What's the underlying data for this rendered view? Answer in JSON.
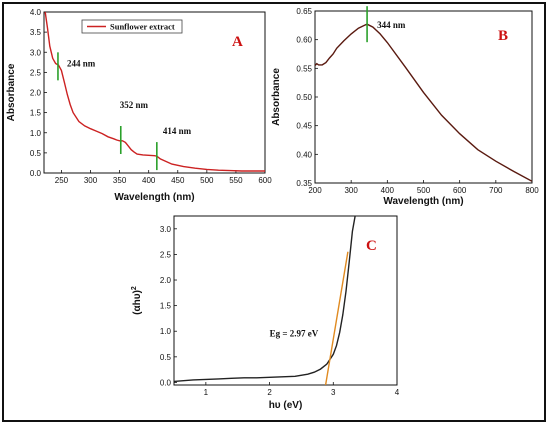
{
  "chart_data": [
    {
      "id": "A",
      "type": "line",
      "panel_label": "A",
      "xlabel": "Wavelength (nm)",
      "ylabel": "Absorbance",
      "xlim": [
        220,
        600
      ],
      "ylim": [
        0.0,
        4.0
      ],
      "x_ticks": [
        250,
        300,
        350,
        400,
        450,
        500,
        550,
        600
      ],
      "y_ticks": [
        0.0,
        0.5,
        1.0,
        1.5,
        2.0,
        2.5,
        3.0,
        3.5,
        4.0
      ],
      "y_tick_labels": [
        "0.0",
        "0.5",
        "1.0",
        "1.5",
        "2.0",
        "2.5",
        "3.0",
        "3.5",
        "4.0"
      ],
      "legend": {
        "position": "top-center",
        "entries": [
          "Sunflower extract"
        ]
      },
      "series": [
        {
          "name": "Sunflower extract",
          "color": "#cc2222",
          "x": [
            222,
            226,
            230,
            235,
            240,
            245,
            250,
            255,
            260,
            265,
            270,
            280,
            290,
            300,
            310,
            320,
            330,
            340,
            345,
            350,
            355,
            360,
            370,
            375,
            380,
            390,
            400,
            410,
            414,
            420,
            440,
            460,
            480,
            500,
            520,
            540,
            560,
            580,
            600
          ],
          "y": [
            4.0,
            3.6,
            3.15,
            2.85,
            2.72,
            2.68,
            2.55,
            2.25,
            1.95,
            1.7,
            1.5,
            1.28,
            1.17,
            1.1,
            1.04,
            0.98,
            0.9,
            0.85,
            0.82,
            0.8,
            0.8,
            0.76,
            0.58,
            0.52,
            0.47,
            0.45,
            0.44,
            0.43,
            0.42,
            0.35,
            0.22,
            0.16,
            0.12,
            0.09,
            0.07,
            0.06,
            0.05,
            0.05,
            0.05
          ]
        }
      ],
      "annotations": [
        {
          "text": "244 nm",
          "x": 244,
          "y": 2.65
        },
        {
          "text": "352 nm",
          "x": 352,
          "y": 0.82
        },
        {
          "text": "414 nm",
          "x": 414,
          "y": 0.42
        }
      ]
    },
    {
      "id": "B",
      "type": "line",
      "panel_label": "B",
      "xlabel": "Wavelength (nm)",
      "ylabel": "Absorbance",
      "xlim": [
        200,
        800
      ],
      "ylim": [
        0.35,
        0.65
      ],
      "x_ticks": [
        200,
        300,
        400,
        500,
        600,
        700,
        800
      ],
      "y_ticks": [
        0.35,
        0.4,
        0.45,
        0.5,
        0.55,
        0.6,
        0.65
      ],
      "y_tick_labels": [
        "0.35",
        "0.40",
        "0.45",
        "0.50",
        "0.55",
        "0.60",
        "0.65"
      ],
      "series": [
        {
          "color": "#5a1a10",
          "x": [
            200,
            205,
            210,
            220,
            230,
            240,
            250,
            260,
            280,
            300,
            320,
            340,
            344,
            360,
            380,
            400,
            450,
            500,
            550,
            600,
            650,
            700,
            750,
            800
          ],
          "y": [
            0.555,
            0.558,
            0.556,
            0.556,
            0.56,
            0.568,
            0.575,
            0.585,
            0.598,
            0.61,
            0.62,
            0.626,
            0.627,
            0.622,
            0.61,
            0.595,
            0.552,
            0.508,
            0.468,
            0.436,
            0.408,
            0.388,
            0.37,
            0.353
          ]
        }
      ],
      "annotations": [
        {
          "text": "344 nm",
          "x": 344,
          "y": 0.627
        }
      ]
    },
    {
      "id": "C",
      "type": "line",
      "panel_label": "C",
      "xlabel": "hυ (eV)",
      "ylabel": "(αhυ)2",
      "xlim": [
        0.5,
        4.0
      ],
      "ylim": [
        -0.05,
        3.25
      ],
      "x_ticks": [
        1,
        2,
        3,
        4
      ],
      "y_ticks": [
        0.0,
        0.5,
        1.0,
        1.5,
        2.0,
        2.5,
        3.0
      ],
      "y_tick_labels": [
        "0.0",
        "0.5",
        "1.0",
        "1.5",
        "2.0",
        "2.5",
        "3.0"
      ],
      "series": [
        {
          "color": "#222222",
          "x": [
            0.5,
            0.8,
            1.0,
            1.2,
            1.4,
            1.6,
            1.8,
            2.0,
            2.2,
            2.4,
            2.6,
            2.7,
            2.8,
            2.9,
            3.0,
            3.05,
            3.1,
            3.15,
            3.2,
            3.25,
            3.3,
            3.35
          ],
          "y": [
            0.02,
            0.05,
            0.06,
            0.07,
            0.08,
            0.09,
            0.09,
            0.1,
            0.11,
            0.12,
            0.16,
            0.2,
            0.26,
            0.36,
            0.55,
            0.72,
            0.98,
            1.32,
            1.78,
            2.35,
            2.95,
            3.3
          ]
        },
        {
          "color": "#e08a20",
          "x": [
            2.88,
            3.23
          ],
          "y": [
            -0.05,
            2.55
          ]
        }
      ],
      "annotations": [
        {
          "text": "Eg = 2.97 eV",
          "x": 2.0,
          "y": 0.9
        }
      ]
    }
  ]
}
